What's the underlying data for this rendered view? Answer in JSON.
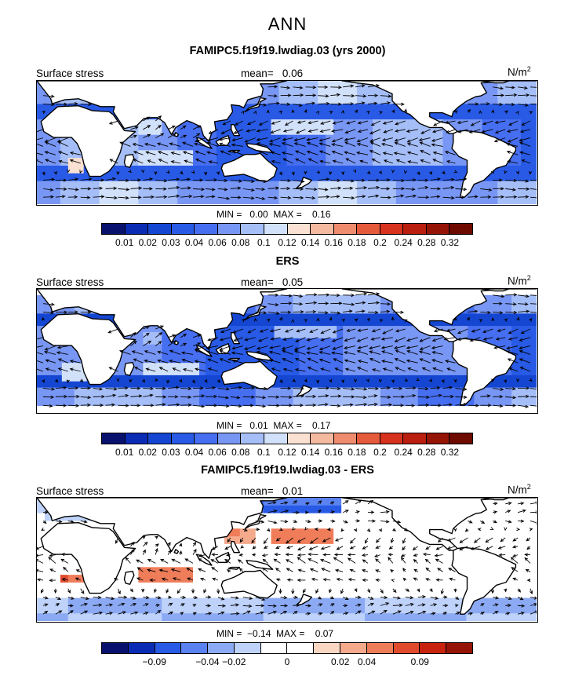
{
  "page": {
    "title": "ANN"
  },
  "panels": [
    {
      "title": "FAMIPC5.f19f19.lwdiag.03 (yrs 2000)",
      "left_label": "Surface stress",
      "mean_text": "mean=   0.06",
      "units": "N/m",
      "units_sup": "2",
      "minmax_text": "MIN =   0.00  MAX =    0.16",
      "style": "abs",
      "palette": "abs",
      "colorbar_labels": [
        "0.01",
        "0.02",
        "0.03",
        "0.04",
        "0.06",
        "0.08",
        "0.1",
        "0.12",
        "0.14",
        "0.16",
        "0.18",
        "0.2",
        "0.24",
        "0.28",
        "0.32"
      ]
    },
    {
      "title": "ERS",
      "left_label": "Surface stress",
      "mean_text": "mean=   0.05",
      "units": "N/m",
      "units_sup": "2",
      "minmax_text": "MIN =   0.01  MAX =    0.17",
      "style": "obs",
      "palette": "abs",
      "colorbar_labels": [
        "0.01",
        "0.02",
        "0.03",
        "0.04",
        "0.06",
        "0.08",
        "0.1",
        "0.12",
        "0.14",
        "0.16",
        "0.18",
        "0.2",
        "0.24",
        "0.28",
        "0.32"
      ]
    },
    {
      "title": "FAMIPC5.f19f19.lwdiag.03 - ERS",
      "left_label": "Surface stress",
      "mean_text": "mean=   0.01",
      "units": "N/m",
      "units_sup": "2",
      "minmax_text": "MIN =  −0.14  MAX =    0.07",
      "style": "diff",
      "palette": "diff",
      "colorbar_labels": [
        "−0.09",
        "−0.04",
        "−0.02",
        "0",
        "0.02",
        "0.04",
        "0.09"
      ]
    }
  ],
  "palettes": {
    "abs": [
      "#08126e",
      "#0a2cb4",
      "#1446d2",
      "#285ae6",
      "#466ef0",
      "#7896f4",
      "#a5bef8",
      "#d2e1fa",
      "#fae1d2",
      "#f5b9a0",
      "#f08c6e",
      "#e65a3c",
      "#d7321e",
      "#b91e0f",
      "#961405",
      "#6e0a00"
    ],
    "diff": [
      "#08126e",
      "#0a2cb4",
      "#285ae6",
      "#5a82f0",
      "#8caaf4",
      "#bed2fa",
      "#ffffff",
      "#ffffff",
      "#fad7c3",
      "#f5aa8c",
      "#f07d5a",
      "#e14b2d",
      "#c8230f",
      "#961405"
    ]
  },
  "colors": {
    "land": "#ffffff",
    "coast": "#000000",
    "vector": "#000000"
  },
  "chart_data": [
    {
      "type": "heatmap",
      "title": "FAMIPC5.f19f19.lwdiag.03 (yrs 2000)",
      "variable": "Surface stress",
      "units": "N/m2",
      "mean": 0.06,
      "min": 0.0,
      "max": 0.16,
      "levels": [
        0.01,
        0.02,
        0.03,
        0.04,
        0.06,
        0.08,
        0.1,
        0.12,
        0.14,
        0.16,
        0.18,
        0.2,
        0.24,
        0.28,
        0.32
      ],
      "overlay": "wind stress vectors"
    },
    {
      "type": "heatmap",
      "title": "ERS",
      "variable": "Surface stress",
      "units": "N/m2",
      "mean": 0.05,
      "min": 0.01,
      "max": 0.17,
      "levels": [
        0.01,
        0.02,
        0.03,
        0.04,
        0.06,
        0.08,
        0.1,
        0.12,
        0.14,
        0.16,
        0.18,
        0.2,
        0.24,
        0.28,
        0.32
      ],
      "overlay": "wind stress vectors"
    },
    {
      "type": "heatmap",
      "title": "FAMIPC5.f19f19.lwdiag.03 - ERS",
      "variable": "Surface stress",
      "units": "N/m2",
      "mean": 0.01,
      "min": -0.14,
      "max": 0.07,
      "levels": [
        -0.09,
        -0.04,
        -0.02,
        0,
        0.02,
        0.04,
        0.09
      ],
      "overlay": "wind stress difference vectors"
    }
  ]
}
